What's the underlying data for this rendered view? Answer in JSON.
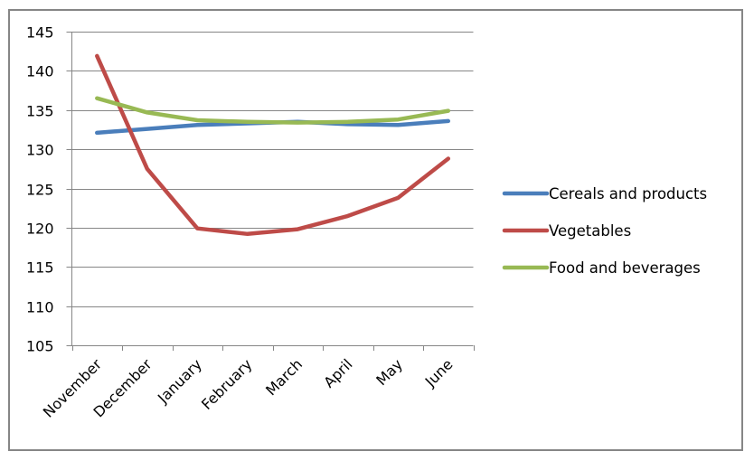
{
  "chart_data": {
    "type": "line",
    "title": "",
    "xlabel": "",
    "ylabel": "",
    "categories": [
      "November",
      "December",
      "January",
      "February",
      "March",
      "April",
      "May",
      "June"
    ],
    "ylim": [
      105,
      145
    ],
    "yticks": [
      105,
      110,
      115,
      120,
      125,
      130,
      135,
      140,
      145
    ],
    "grid": true,
    "legend_position": "right",
    "series": [
      {
        "name": "Cereals and products",
        "color": "#4A7EBB",
        "values": [
          132.1,
          132.6,
          133.1,
          133.3,
          133.5,
          133.2,
          133.1,
          133.6
        ]
      },
      {
        "name": "Vegetables",
        "color": "#BE4B48",
        "values": [
          141.9,
          127.5,
          119.9,
          119.2,
          119.8,
          121.5,
          123.8,
          128.8
        ]
      },
      {
        "name": "Food and beverages",
        "color": "#98B954",
        "values": [
          136.5,
          134.7,
          133.7,
          133.5,
          133.4,
          133.5,
          133.8,
          134.9
        ]
      }
    ]
  }
}
